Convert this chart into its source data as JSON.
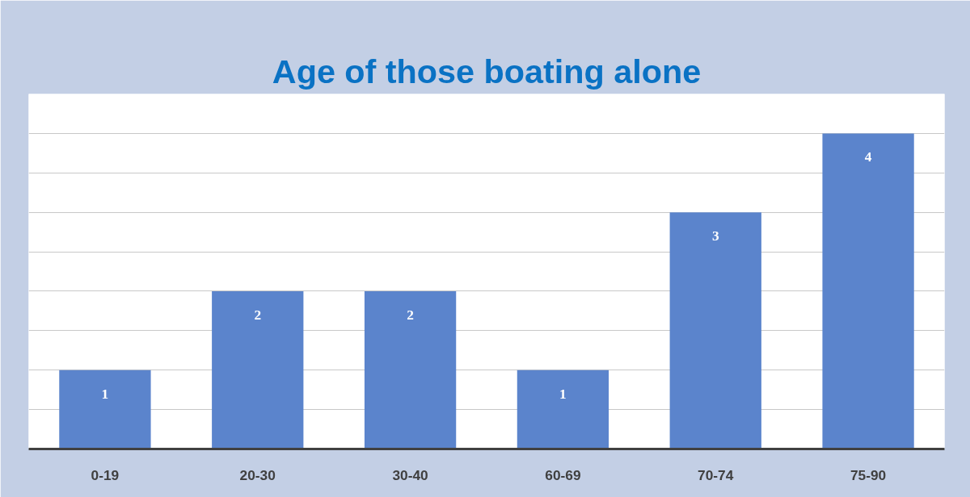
{
  "chart_data": {
    "type": "bar",
    "title": "Age of those boating alone",
    "categories": [
      "0-19",
      "20-30",
      "30-40",
      "60-69",
      "70-74",
      "75-90"
    ],
    "values": [
      1,
      2,
      2,
      1,
      3,
      4
    ],
    "color": "#5b84cc",
    "ylim": [
      0,
      4.5
    ],
    "yticks": [
      {
        "value": 0,
        "label": null
      },
      {
        "value": 0.5,
        "label": null
      },
      {
        "value": 1,
        "label": null
      },
      {
        "value": 1.5,
        "label": null
      },
      {
        "value": 2,
        "label": null
      },
      {
        "value": 2.5,
        "label": null
      },
      {
        "value": 3,
        "label": null
      },
      {
        "value": 3.5,
        "label": null
      },
      {
        "value": 4,
        "label": null
      }
    ],
    "grid": "y",
    "tick_labels": "x",
    "data_labels": true,
    "legend": false
  }
}
